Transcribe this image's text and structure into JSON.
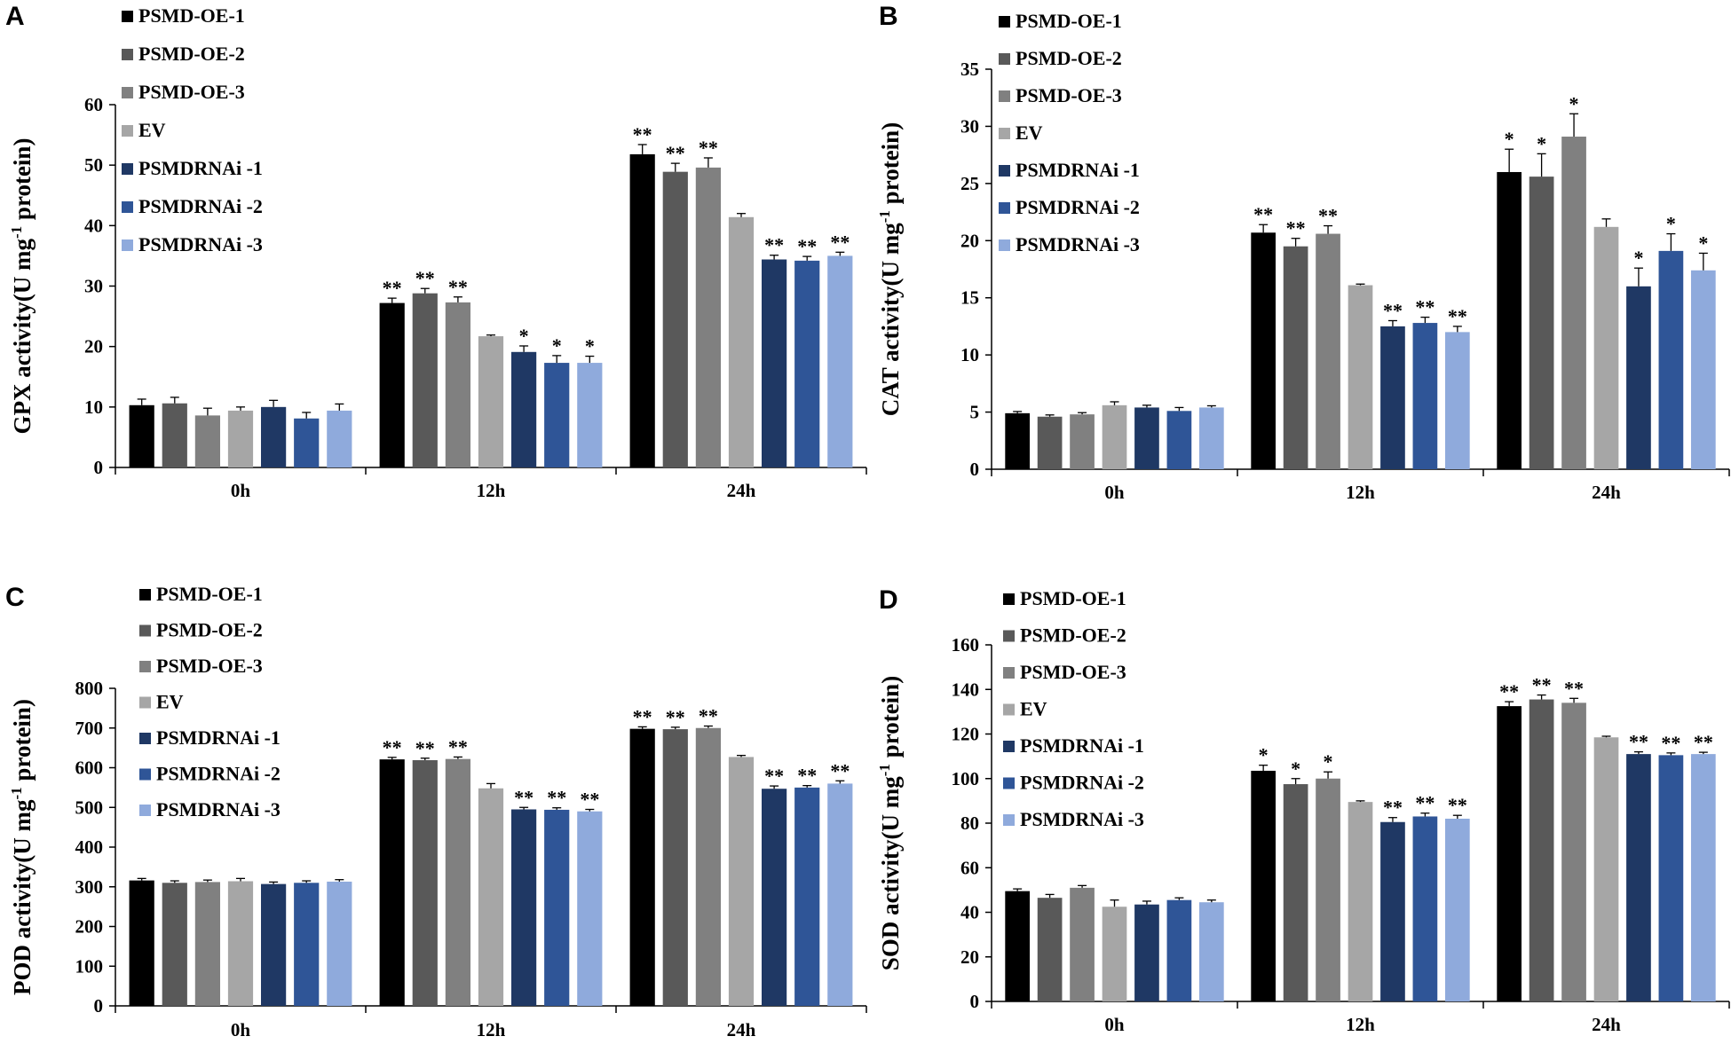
{
  "colors": [
    "#000000",
    "#595959",
    "#808080",
    "#a6a6a6",
    "#1f3864",
    "#2f5597",
    "#8faadc"
  ],
  "chart_data": [
    {
      "panel": "A",
      "type": "bar",
      "ylabel_main": "GPX activity(U mg",
      "ylabel_sup": "-1",
      "ylabel_end": " protein)",
      "categories": [
        "0h",
        "12h",
        "24h"
      ],
      "ylim": [
        0,
        60
      ],
      "yticks": [
        0,
        10,
        20,
        30,
        40,
        50,
        60
      ],
      "legend": "top-left",
      "series": [
        {
          "name": "PSMD-OE-1",
          "values": [
            10.3,
            27.2,
            51.8
          ],
          "errors": [
            1.0,
            0.8,
            1.6
          ],
          "sig": [
            "",
            "**",
            "**"
          ]
        },
        {
          "name": "PSMD-OE-2",
          "values": [
            10.6,
            28.8,
            48.9
          ],
          "errors": [
            1.0,
            0.8,
            1.4
          ],
          "sig": [
            "",
            "**",
            "**"
          ]
        },
        {
          "name": "PSMD-OE-3",
          "values": [
            8.6,
            27.3,
            49.6
          ],
          "errors": [
            1.2,
            0.9,
            1.6
          ],
          "sig": [
            "",
            "**",
            "**"
          ]
        },
        {
          "name": "EV",
          "values": [
            9.4,
            21.7,
            41.4
          ],
          "errors": [
            0.6,
            0.2,
            0.6
          ],
          "sig": [
            "",
            "",
            ""
          ]
        },
        {
          "name": "PSMDRNAi -1",
          "values": [
            10.0,
            19.1,
            34.4
          ],
          "errors": [
            1.1,
            1.0,
            0.7
          ],
          "sig": [
            "",
            "*",
            "**"
          ]
        },
        {
          "name": "PSMDRNAi -2",
          "values": [
            8.1,
            17.3,
            34.2
          ],
          "errors": [
            1.0,
            1.2,
            0.7
          ],
          "sig": [
            "",
            "*",
            "**"
          ]
        },
        {
          "name": "PSMDRNAi -3",
          "values": [
            9.4,
            17.3,
            35.0
          ],
          "errors": [
            1.1,
            1.1,
            0.6
          ],
          "sig": [
            "",
            "*",
            "**"
          ]
        }
      ]
    },
    {
      "panel": "B",
      "type": "bar",
      "ylabel_main": "CAT activity(U mg",
      "ylabel_sup": "-1",
      "ylabel_end": " protein)",
      "categories": [
        "0h",
        "12h",
        "24h"
      ],
      "ylim": [
        0,
        35
      ],
      "yticks": [
        0,
        5,
        10,
        15,
        20,
        25,
        30,
        35
      ],
      "legend": "top-left",
      "series": [
        {
          "name": "PSMD-OE-1",
          "values": [
            4.9,
            20.7,
            26.0
          ],
          "errors": [
            0.15,
            0.7,
            2.0
          ],
          "sig": [
            "",
            "**",
            "*"
          ]
        },
        {
          "name": "PSMD-OE-2",
          "values": [
            4.6,
            19.5,
            25.6
          ],
          "errors": [
            0.15,
            0.7,
            2.0
          ],
          "sig": [
            "",
            "**",
            "*"
          ]
        },
        {
          "name": "PSMD-OE-3",
          "values": [
            4.8,
            20.6,
            29.1
          ],
          "errors": [
            0.15,
            0.7,
            2.0
          ],
          "sig": [
            "",
            "**",
            "*"
          ]
        },
        {
          "name": "EV",
          "values": [
            5.6,
            16.1,
            21.2
          ],
          "errors": [
            0.3,
            0.1,
            0.7
          ],
          "sig": [
            "",
            "",
            ""
          ]
        },
        {
          "name": "PSMDRNAi -1",
          "values": [
            5.4,
            12.5,
            16.0
          ],
          "errors": [
            0.2,
            0.5,
            1.6
          ],
          "sig": [
            "",
            "**",
            "*"
          ]
        },
        {
          "name": "PSMDRNAi -2",
          "values": [
            5.1,
            12.8,
            19.1
          ],
          "errors": [
            0.3,
            0.5,
            1.5
          ],
          "sig": [
            "",
            "**",
            "*"
          ]
        },
        {
          "name": "PSMDRNAi -3",
          "values": [
            5.4,
            12.0,
            17.4
          ],
          "errors": [
            0.15,
            0.5,
            1.5
          ],
          "sig": [
            "",
            "**",
            "*"
          ]
        }
      ]
    },
    {
      "panel": "C",
      "type": "bar",
      "ylabel_main": "POD activity(U mg",
      "ylabel_sup": "-1",
      "ylabel_end": " protein)",
      "categories": [
        "0h",
        "12h",
        "24h"
      ],
      "ylim": [
        0,
        800
      ],
      "yticks": [
        0,
        100,
        200,
        300,
        400,
        500,
        600,
        700,
        800
      ],
      "legend": "top-left",
      "series": [
        {
          "name": "PSMD-OE-1",
          "values": [
            316,
            621,
            698
          ],
          "errors": [
            5,
            5,
            5
          ],
          "sig": [
            "",
            "**",
            "**"
          ]
        },
        {
          "name": "PSMD-OE-2",
          "values": [
            310,
            619,
            697
          ],
          "errors": [
            5,
            5,
            5
          ],
          "sig": [
            "",
            "**",
            "**"
          ]
        },
        {
          "name": "PSMD-OE-3",
          "values": [
            312,
            622,
            700
          ],
          "errors": [
            5,
            5,
            5
          ],
          "sig": [
            "",
            "**",
            "**"
          ]
        },
        {
          "name": "EV",
          "values": [
            314,
            548,
            627
          ],
          "errors": [
            7,
            12,
            4
          ],
          "sig": [
            "",
            "",
            ""
          ]
        },
        {
          "name": "PSMDRNAi -1",
          "values": [
            307,
            495,
            547
          ],
          "errors": [
            5,
            5,
            7
          ],
          "sig": [
            "",
            "**",
            "**"
          ]
        },
        {
          "name": "PSMDRNAi -2",
          "values": [
            310,
            494,
            550
          ],
          "errors": [
            5,
            5,
            5
          ],
          "sig": [
            "",
            "**",
            "**"
          ]
        },
        {
          "name": "PSMDRNAi -3",
          "values": [
            313,
            490,
            560
          ],
          "errors": [
            5,
            5,
            7
          ],
          "sig": [
            "",
            "**",
            "**"
          ]
        }
      ]
    },
    {
      "panel": "D",
      "type": "bar",
      "ylabel_main": "SOD activity(U mg",
      "ylabel_sup": "-1",
      "ylabel_end": " protein)",
      "categories": [
        "0h",
        "12h",
        "24h"
      ],
      "ylim": [
        0,
        160
      ],
      "yticks": [
        0,
        20,
        40,
        60,
        80,
        100,
        120,
        140,
        160
      ],
      "legend": "top-left",
      "series": [
        {
          "name": "PSMD-OE-1",
          "values": [
            49.5,
            103.5,
            132.5
          ],
          "errors": [
            1.0,
            2.5,
            2.0
          ],
          "sig": [
            "",
            "*",
            "**"
          ]
        },
        {
          "name": "PSMD-OE-2",
          "values": [
            46.5,
            97.5,
            135.5
          ],
          "errors": [
            1.5,
            2.5,
            2.0
          ],
          "sig": [
            "",
            "*",
            "**"
          ]
        },
        {
          "name": "PSMD-OE-3",
          "values": [
            51.0,
            100.0,
            134.0
          ],
          "errors": [
            1.0,
            3.0,
            2.0
          ],
          "sig": [
            "",
            "*",
            "**"
          ]
        },
        {
          "name": "EV",
          "values": [
            42.5,
            89.5,
            118.5
          ],
          "errors": [
            3.0,
            0.5,
            0.5
          ],
          "sig": [
            "",
            "",
            ""
          ]
        },
        {
          "name": "PSMDRNAi -1",
          "values": [
            43.5,
            80.5,
            111.0
          ],
          "errors": [
            1.5,
            2.0,
            1.0
          ],
          "sig": [
            "",
            "**",
            "**"
          ]
        },
        {
          "name": "PSMDRNAi -2",
          "values": [
            45.5,
            83.0,
            110.5
          ],
          "errors": [
            1.0,
            1.5,
            1.0
          ],
          "sig": [
            "",
            "**",
            "**"
          ]
        },
        {
          "name": "PSMDRNAi -3",
          "values": [
            44.5,
            82.0,
            111.0
          ],
          "errors": [
            1.0,
            1.5,
            0.8
          ],
          "sig": [
            "",
            "**",
            "**"
          ]
        }
      ]
    }
  ]
}
